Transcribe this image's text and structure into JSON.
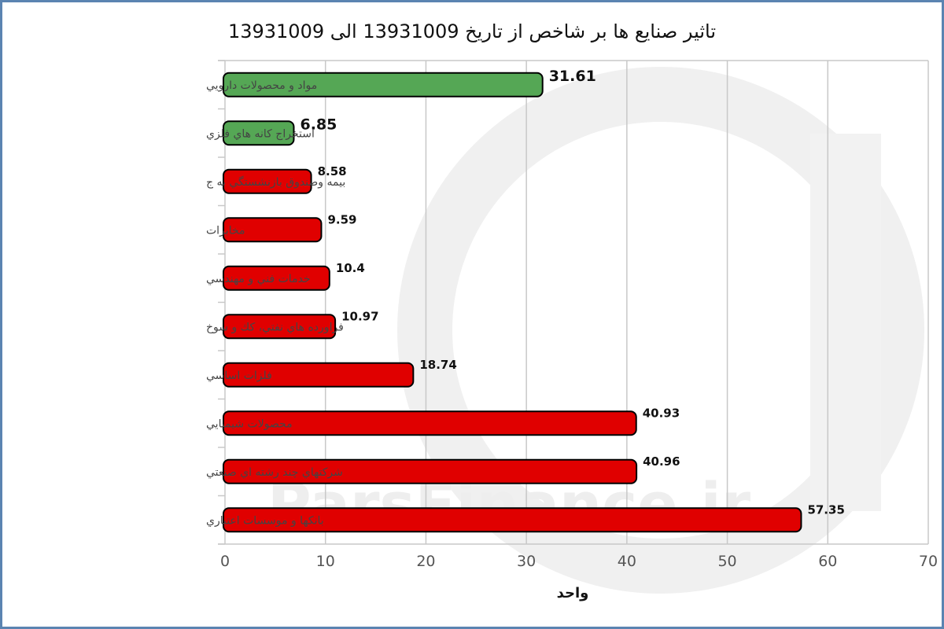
{
  "chart_data": {
    "type": "bar",
    "orientation": "horizontal",
    "title": "تاثیر صنایع ها بر شاخص از تاریخ 13931009 الی 13931009",
    "xlabel": "واحد",
    "ylabel": "",
    "xlim": [
      0,
      70
    ],
    "ticks": [
      0,
      10,
      20,
      30,
      40,
      50,
      60,
      70
    ],
    "grid": "vertical",
    "legend": "none",
    "categories": [
      "مواد و محصولات دارويي",
      "استخراج كانه هاي فلزي",
      "بيمه وصندوق بازنشستگي به ج",
      "مخابرات",
      "خدمات فني و مهندسي",
      "فراورده هاي نفتي، كك و سوخ",
      "فلزات اساسي",
      "محصولات شيميايي",
      "شركتهاي چند رشته اي صنعتي",
      "بانكها و موسسات اعتباري"
    ],
    "values": [
      31.61,
      6.85,
      8.58,
      9.59,
      10.4,
      10.97,
      18.74,
      40.93,
      40.96,
      57.35
    ],
    "value_labels": [
      "31.61",
      "6.85",
      "8.58",
      "9.59",
      "10.4",
      "10.97",
      "18.74",
      "40.93",
      "40.96",
      "57.35"
    ],
    "bar_colors": [
      "#55a755",
      "#55a755",
      "#e00000",
      "#e00000",
      "#e00000",
      "#e00000",
      "#e00000",
      "#e00000",
      "#e00000",
      "#e00000"
    ]
  },
  "watermark": {
    "text": "ParsFinance.ir"
  },
  "colors": {
    "frame": "#5b84b1",
    "grid": "#c8c8c8",
    "positive": "#55a755",
    "negative": "#e00000"
  }
}
